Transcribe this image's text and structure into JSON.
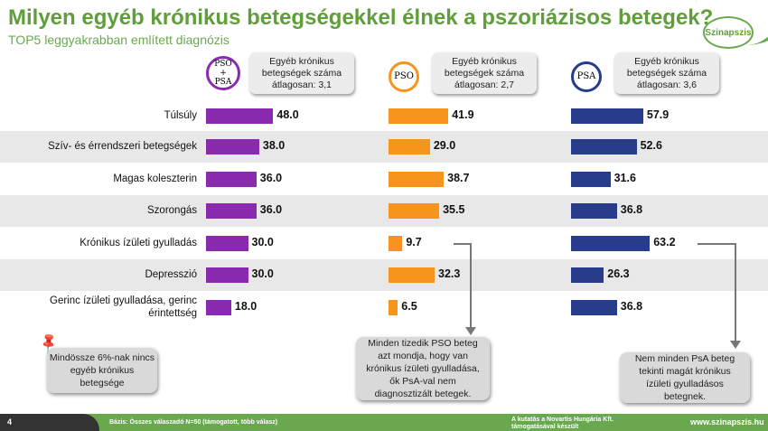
{
  "header": {
    "title": "Milyen egyéb krónikus betegségekkel élnek a pszoriázisos betegek?",
    "subtitle": "TOP5 leggyakrabban említett diagnózis",
    "logo": "Szinapszis"
  },
  "groups": [
    {
      "icon": "PSO + PSA",
      "avg_text": "Egyéb krónikus betegségek száma átlagosan: 3,1",
      "color": "#8a2aaf"
    },
    {
      "icon": "PSO",
      "avg_text": "Egyéb krónikus betegségek száma átlagosan: 2,7",
      "color": "#f7941d"
    },
    {
      "icon": "PSA",
      "avg_text": "Egyéb krónikus betegségek száma átlagosan: 3,6",
      "color": "#283c8c"
    }
  ],
  "chart_data": {
    "type": "bar",
    "categories": [
      "Túlsúly",
      "Szív- és érrendszeri betegségek",
      "Magas koleszterin",
      "Szorongás",
      "Krónikus ízületi gyulladás",
      "Depresszió",
      "Gerinc ízületi gyulladása, gerinc érintettség"
    ],
    "series": [
      {
        "name": "PSO + PSA",
        "values": [
          48.0,
          38.0,
          36.0,
          36.0,
          30.0,
          30.0,
          18.0
        ]
      },
      {
        "name": "PSO",
        "values": [
          41.9,
          29.0,
          38.7,
          35.5,
          9.7,
          32.3,
          6.5
        ]
      },
      {
        "name": "PSA",
        "values": [
          57.9,
          52.6,
          31.6,
          36.8,
          63.2,
          26.3,
          36.8
        ]
      }
    ]
  },
  "callouts": {
    "pin_note": "Mindössze 6%-nak nincs egyéb krónikus betegsége",
    "pso_note": "Minden tizedik PSO beteg azt mondja, hogy van krónikus ízületi gyulladása, ők PsA-val nem diagnosztizált betegek.",
    "psa_note": "Nem minden PsA beteg tekinti magát krónikus ízületi gyulladásos betegnek."
  },
  "footer": {
    "page": "4",
    "base": "Bázis: Összes válaszadó N=50 (támogatott, több válasz)",
    "sponsor": "A kutatás a Novartis Hungária Kft. támogatásával készült",
    "url": "www.szinapszis.hu"
  }
}
